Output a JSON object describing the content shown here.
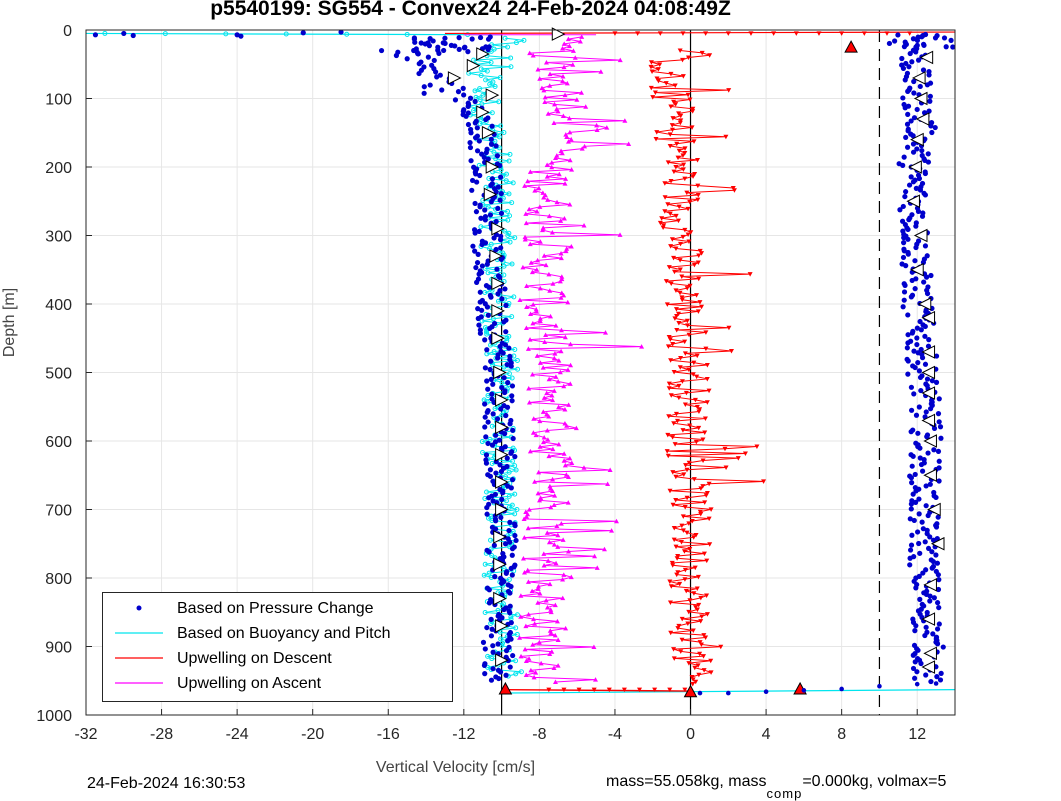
{
  "title": "p5540199: SG554 - Convex24 24-Feb-2024 04:08:49Z",
  "footer_left": "24-Feb-2024 16:30:53",
  "footer_right": {
    "text_a": "mass=55.058kg, mass",
    "subscript": "comp",
    "text_b": "=0.000kg, volmax=5"
  },
  "colors": {
    "pressure": "#0000cc",
    "buoyancy": "#00e5ee",
    "descent": "#ff0000",
    "ascent": "#ff00ff",
    "axis": "#262626"
  },
  "chart_data": {
    "type": "scatter",
    "title": "p5540199: SG554 - Convex24 24-Feb-2024 04:08:49Z",
    "xlabel": "Vertical Velocity [cm/s]",
    "ylabel": "Depth [m]",
    "xlim": [
      -32,
      14
    ],
    "ylim": [
      1000,
      0
    ],
    "y_reversed": true,
    "x_ticks": [
      -32,
      -28,
      -24,
      -20,
      -16,
      -12,
      -8,
      -4,
      0,
      4,
      8,
      12
    ],
    "x_tick_labels": [
      "-32",
      "-28",
      "-24",
      "-20",
      "-16",
      "-12",
      "-8",
      "-4",
      "0",
      "4",
      "8",
      "12"
    ],
    "y_ticks": [
      0,
      100,
      200,
      300,
      400,
      500,
      600,
      700,
      800,
      900,
      1000
    ],
    "y_tick_labels": [
      "0",
      "100",
      "200",
      "300",
      "400",
      "500",
      "600",
      "700",
      "800",
      "900",
      "1000"
    ],
    "grid": true,
    "legend_position": "bottom-left",
    "reference_lines": [
      {
        "x": -10,
        "style": "solid"
      },
      {
        "x": 0,
        "style": "solid"
      },
      {
        "x": 10,
        "style": "dashed"
      }
    ],
    "series": [
      {
        "name": "Based on Pressure Change",
        "marker": "dot",
        "profile": [
          [
            -14.5,
            10
          ],
          [
            -14.5,
            40
          ],
          [
            -13.5,
            60
          ],
          [
            -12.5,
            90
          ],
          [
            -11.5,
            110
          ],
          [
            -11,
            150
          ],
          [
            -10.8,
            200
          ],
          [
            -10.8,
            300
          ],
          [
            -10.5,
            400
          ],
          [
            -10.2,
            500
          ],
          [
            -10.1,
            600
          ],
          [
            -10,
            700
          ],
          [
            -10,
            800
          ],
          [
            -10.2,
            900
          ],
          [
            -10.1,
            950
          ],
          [
            12.5,
            950
          ],
          [
            12.6,
            900
          ],
          [
            12.4,
            800
          ],
          [
            12.3,
            700
          ],
          [
            12.5,
            600
          ],
          [
            12.3,
            500
          ],
          [
            12.0,
            400
          ],
          [
            11.9,
            300
          ],
          [
            11.8,
            200
          ],
          [
            12.2,
            150
          ],
          [
            12.0,
            100
          ],
          [
            11.8,
            50
          ],
          [
            12.0,
            20
          ]
        ],
        "surface_outliers": [
          [
            -31.5,
            7
          ],
          [
            -30,
            5
          ],
          [
            -29.5,
            8
          ],
          [
            -24,
            7
          ],
          [
            -23.8,
            9
          ],
          [
            -20.5,
            4
          ],
          [
            -18.5,
            3
          ],
          [
            -13,
            12
          ]
        ],
        "bottom_points": [
          [
            0.5,
            968
          ],
          [
            2,
            968
          ],
          [
            4,
            966
          ],
          [
            6,
            964
          ],
          [
            8,
            962
          ],
          [
            10,
            958
          ],
          [
            12,
            955
          ],
          [
            13,
            954
          ]
        ]
      },
      {
        "name": "Based on Buoyancy and Pitch",
        "marker": "circle-line",
        "profile": [
          [
            -10.5,
            20
          ],
          [
            -10.8,
            50
          ],
          [
            -11,
            100
          ],
          [
            -10.5,
            150
          ],
          [
            -10.3,
            200
          ],
          [
            -10.2,
            300
          ],
          [
            -10.2,
            400
          ],
          [
            -10,
            500
          ],
          [
            -10.2,
            600
          ],
          [
            -10,
            700
          ],
          [
            -10.1,
            800
          ],
          [
            -10,
            900
          ],
          [
            -9.8,
            940
          ]
        ],
        "surface_line": [
          [
            -32,
            5
          ],
          [
            -10,
            7
          ]
        ],
        "bottom_line": [
          [
            -10,
            968
          ],
          [
            14,
            963
          ]
        ]
      },
      {
        "name": "Upwelling on Descent",
        "marker": "triangle-down",
        "profile": [
          [
            -1,
            40
          ],
          [
            -1.5,
            80
          ],
          [
            -1,
            100
          ],
          [
            -0.8,
            150
          ],
          [
            -0.5,
            200
          ],
          [
            -0.5,
            300
          ],
          [
            -0.3,
            400
          ],
          [
            0,
            500
          ],
          [
            -0.2,
            600
          ],
          [
            0,
            700
          ],
          [
            0,
            800
          ],
          [
            0,
            900
          ],
          [
            0,
            960
          ]
        ],
        "surface_line": [
          [
            -13,
            5
          ],
          [
            14,
            3
          ]
        ],
        "bottom_line": [
          [
            -10,
            963
          ],
          [
            0,
            965
          ]
        ],
        "highlight_markers": [
          [
            8.5,
            25
          ],
          [
            5.8,
            962
          ],
          [
            -9.8,
            962
          ],
          [
            0,
            966
          ]
        ]
      },
      {
        "name": "Upwelling on Ascent",
        "marker": "triangle-up",
        "profile": [
          [
            -7,
            10
          ],
          [
            -7.5,
            50
          ],
          [
            -6.5,
            100
          ],
          [
            -6,
            150
          ],
          [
            -7.5,
            200
          ],
          [
            -7.5,
            300
          ],
          [
            -7.8,
            400
          ],
          [
            -7.5,
            500
          ],
          [
            -7.2,
            600
          ],
          [
            -7.5,
            700
          ],
          [
            -7.8,
            800
          ],
          [
            -7.8,
            900
          ],
          [
            -7.5,
            960
          ]
        ],
        "surface_line": [
          [
            -12,
            7
          ],
          [
            -5,
            7
          ]
        ]
      }
    ],
    "glider_markers": {
      "descent": [
        [
          -7,
          6
        ],
        [
          -11,
          35
        ],
        [
          -11.5,
          52
        ],
        [
          -12.5,
          70
        ],
        [
          -10.5,
          95
        ],
        [
          -11,
          120
        ],
        [
          -10.7,
          150
        ],
        [
          -10.5,
          200
        ],
        [
          -10.6,
          240
        ],
        [
          -10.2,
          290
        ],
        [
          -10.3,
          330
        ],
        [
          -10.2,
          370
        ],
        [
          -10.2,
          410
        ],
        [
          -10.2,
          450
        ],
        [
          -10.1,
          500
        ],
        [
          -10,
          540
        ],
        [
          -10,
          580
        ],
        [
          -10,
          620
        ],
        [
          -10,
          660
        ],
        [
          -10,
          700
        ],
        [
          -10.1,
          740
        ],
        [
          -10.1,
          780
        ],
        [
          -10.1,
          830
        ],
        [
          -10,
          870
        ],
        [
          -10,
          920
        ]
      ],
      "ascent": [
        [
          12.5,
          40
        ],
        [
          12.1,
          70
        ],
        [
          12.2,
          100
        ],
        [
          12.3,
          130
        ],
        [
          12,
          160
        ],
        [
          11.9,
          200
        ],
        [
          11.8,
          250
        ],
        [
          12.2,
          300
        ],
        [
          12.0,
          350
        ],
        [
          12.4,
          400
        ],
        [
          12.6,
          420
        ],
        [
          12.6,
          470
        ],
        [
          12.6,
          500
        ],
        [
          12.6,
          530
        ],
        [
          12.6,
          570
        ],
        [
          12.7,
          600
        ],
        [
          12.7,
          650
        ],
        [
          12.9,
          700
        ],
        [
          13.1,
          750
        ],
        [
          12.7,
          810
        ],
        [
          12.6,
          860
        ],
        [
          12.7,
          910
        ],
        [
          12.6,
          930
        ]
      ]
    }
  }
}
